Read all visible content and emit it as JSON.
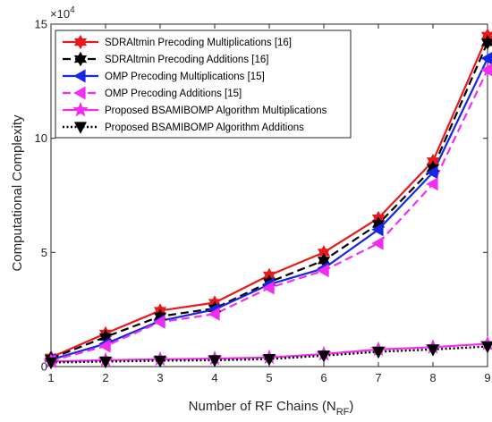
{
  "chart_data": {
    "type": "line",
    "xlabel": "Number of RF Chains (N",
    "xlabel_sub": "RF",
    "xlabel_close": ")",
    "ylabel": "Computational Complexity",
    "y_multiplier_base": "×10",
    "y_multiplier_exp": "4",
    "x": [
      1,
      2,
      3,
      4,
      5,
      6,
      7,
      8,
      9
    ],
    "xlim": [
      1,
      9
    ],
    "ylim": [
      0,
      15
    ],
    "x_ticks": [
      "1",
      "2",
      "3",
      "4",
      "5",
      "6",
      "7",
      "8",
      "9"
    ],
    "y_ticks": [
      {
        "value": 0,
        "label": "0"
      },
      {
        "value": 5,
        "label": "5"
      },
      {
        "value": 10,
        "label": "10"
      },
      {
        "value": 15,
        "label": "15"
      }
    ],
    "grid": false,
    "legend_position": "top-left",
    "series": [
      {
        "name": "SDRAltmin Precoding Multiplications [16]",
        "color": "#e8191b",
        "dash": "solid",
        "marker": "hexagram",
        "filled": true,
        "values": [
          0.4,
          1.45,
          2.45,
          2.8,
          4.0,
          5.0,
          6.5,
          9.0,
          14.5
        ]
      },
      {
        "name": "SDRAltmin Precoding Additions [16]",
        "color": "#000000",
        "dash": "dashed",
        "marker": "hexagram",
        "filled": true,
        "values": [
          0.35,
          1.3,
          2.2,
          2.55,
          3.7,
          4.65,
          6.25,
          8.7,
          14.2
        ]
      },
      {
        "name": "OMP Precoding Multiplications [15]",
        "color": "#1526e6",
        "dash": "solid",
        "marker": "triangle-left",
        "filled": true,
        "values": [
          0.3,
          1.0,
          2.0,
          2.5,
          3.6,
          4.3,
          6.0,
          8.5,
          13.5
        ]
      },
      {
        "name": "OMP Precoding Additions [15]",
        "color": "#f22cf2",
        "dash": "dashed",
        "marker": "triangle-left",
        "filled": true,
        "values": [
          0.25,
          0.9,
          1.95,
          2.3,
          3.45,
          4.2,
          5.4,
          8.0,
          13.0
        ]
      },
      {
        "name": "Proposed BSAMIBOMP Algorithm Multiplications",
        "color": "#f22cf2",
        "dash": "solid",
        "marker": "pentagram",
        "filled": true,
        "values": [
          0.22,
          0.28,
          0.32,
          0.35,
          0.4,
          0.55,
          0.75,
          0.85,
          1.0
        ]
      },
      {
        "name": "Proposed BSAMIBOMP Algorithm Additions",
        "color": "#000000",
        "dash": "dotted",
        "marker": "triangle-down",
        "filled": true,
        "values": [
          0.18,
          0.22,
          0.26,
          0.28,
          0.33,
          0.48,
          0.65,
          0.75,
          0.88
        ]
      }
    ]
  }
}
